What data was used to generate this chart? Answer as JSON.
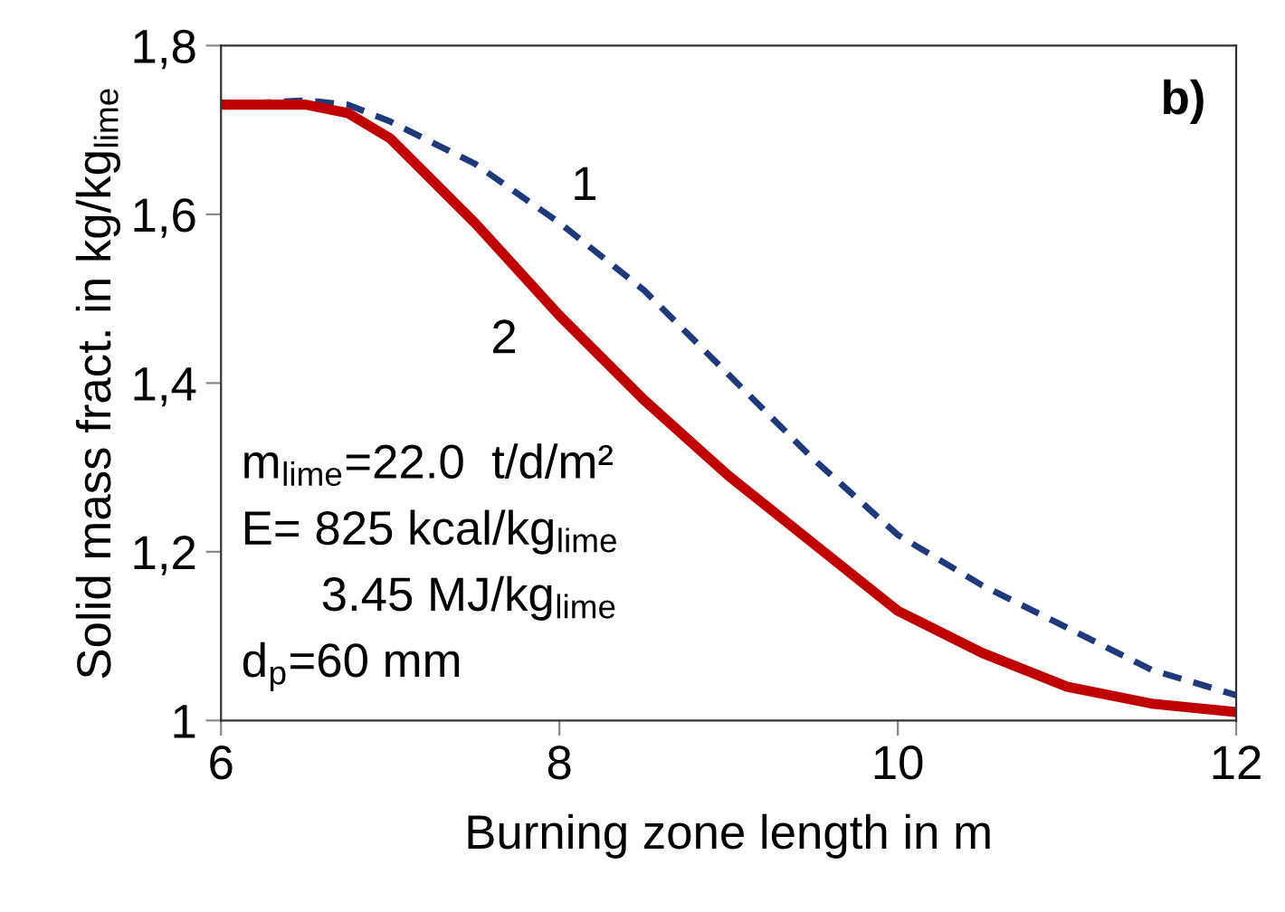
{
  "chart_data": {
    "type": "line",
    "xlabel": "Burning zone length in m",
    "ylabel": "Solid mass fract. in kg/kg$_{lime}$",
    "x": [
      6,
      6.5,
      6.75,
      7,
      7.5,
      8,
      8.5,
      9,
      9.5,
      10,
      10.5,
      11,
      11.5,
      12
    ],
    "series": [
      {
        "name": "1",
        "color": "#1f3a7a",
        "line_style": "dashed",
        "values": [
          1.73,
          1.735,
          1.73,
          1.71,
          1.66,
          1.59,
          1.51,
          1.41,
          1.31,
          1.22,
          1.16,
          1.11,
          1.06,
          1.03
        ]
      },
      {
        "name": "2",
        "color": "#c00000",
        "line_style": "solid",
        "values": [
          1.73,
          1.73,
          1.72,
          1.69,
          1.59,
          1.48,
          1.38,
          1.29,
          1.21,
          1.13,
          1.08,
          1.04,
          1.02,
          1.01
        ]
      }
    ],
    "xlim": [
      6,
      12
    ],
    "xticks": [
      6,
      8,
      10,
      12
    ],
    "ylim": [
      1,
      1.8
    ],
    "yticks": [
      1,
      {
        "value": 1.2,
        "label": "1,2"
      },
      {
        "value": 1.4,
        "label": "1,4"
      },
      {
        "value": 1.6,
        "label": "1,6"
      },
      {
        "value": 1.8,
        "label": "1,8"
      }
    ],
    "grid": false,
    "legend": false,
    "marker": "none",
    "annotations": [
      "b)",
      "m$_{lime}$=22.0  t/d/m²",
      "E= 825 kcal/kg$_{lime}$",
      "      3.45 MJ/kg$_{lime}$",
      "d$_{p}$=60 mm"
    ]
  }
}
